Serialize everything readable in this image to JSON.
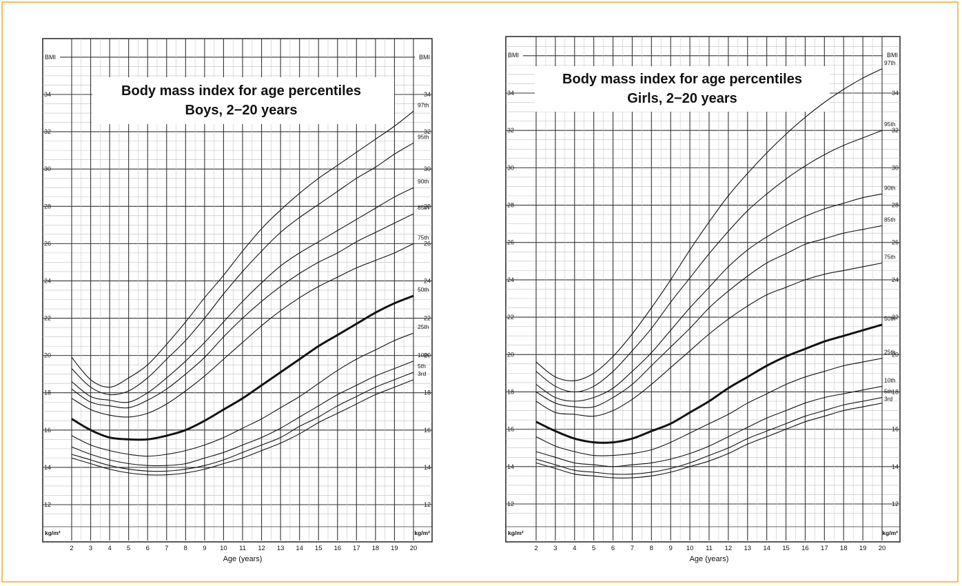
{
  "chart_data": [
    {
      "type": "line",
      "title_line1": "Body mass index for age percentiles",
      "title_line2": "Boys, 2−20 years",
      "xlabel": "Age (years)",
      "ylabel": "BMI",
      "yunit": "kg/m²",
      "xlim": [
        2,
        21
      ],
      "ylim": [
        11,
        36
      ],
      "x_ticks": [
        2,
        3,
        4,
        5,
        6,
        7,
        8,
        9,
        10,
        11,
        12,
        13,
        14,
        15,
        16,
        17,
        18,
        19,
        20
      ],
      "y_ticks": [
        12,
        14,
        16,
        18,
        20,
        22,
        24,
        26,
        28,
        30,
        32,
        34
      ],
      "x": [
        2,
        3,
        4,
        5,
        6,
        7,
        8,
        9,
        10,
        11,
        12,
        13,
        14,
        15,
        16,
        17,
        18,
        19,
        20
      ],
      "series": [
        {
          "name": "97th",
          "values": [
            19.9,
            18.7,
            18.3,
            18.8,
            19.5,
            20.6,
            21.8,
            23.1,
            24.3,
            25.6,
            26.8,
            27.8,
            28.7,
            29.5,
            30.2,
            30.9,
            31.6,
            32.3,
            33.1
          ]
        },
        {
          "name": "95th",
          "values": [
            19.3,
            18.3,
            17.9,
            18.1,
            18.8,
            19.8,
            20.8,
            22.0,
            23.3,
            24.5,
            25.6,
            26.6,
            27.4,
            28.1,
            28.8,
            29.5,
            30.1,
            30.8,
            31.4
          ]
        },
        {
          "name": "90th",
          "values": [
            18.6,
            17.8,
            17.6,
            17.5,
            18.0,
            18.8,
            19.7,
            20.7,
            21.8,
            22.9,
            23.9,
            24.8,
            25.5,
            26.1,
            26.7,
            27.3,
            27.9,
            28.5,
            29.0
          ]
        },
        {
          "name": "85th",
          "values": [
            18.2,
            17.5,
            17.3,
            17.2,
            17.6,
            18.2,
            19.0,
            19.9,
            21.0,
            22.0,
            22.9,
            23.7,
            24.4,
            25.0,
            25.5,
            26.1,
            26.6,
            27.1,
            27.6
          ]
        },
        {
          "name": "75th",
          "values": [
            17.7,
            17.1,
            16.8,
            16.7,
            16.9,
            17.4,
            18.1,
            18.9,
            19.8,
            20.7,
            21.6,
            22.4,
            23.1,
            23.7,
            24.2,
            24.7,
            25.1,
            25.5,
            26.0
          ]
        },
        {
          "name": "50th",
          "values": [
            16.6,
            16.0,
            15.6,
            15.5,
            15.5,
            15.7,
            16.0,
            16.5,
            17.1,
            17.7,
            18.4,
            19.1,
            19.8,
            20.5,
            21.1,
            21.7,
            22.3,
            22.8,
            23.2
          ]
        },
        {
          "name": "25th",
          "values": [
            15.7,
            15.2,
            14.9,
            14.7,
            14.6,
            14.7,
            14.9,
            15.2,
            15.6,
            16.1,
            16.6,
            17.2,
            17.8,
            18.5,
            19.2,
            19.8,
            20.3,
            20.8,
            21.2
          ]
        },
        {
          "name": "10th",
          "values": [
            15.1,
            14.7,
            14.4,
            14.2,
            14.1,
            14.1,
            14.2,
            14.5,
            14.8,
            15.2,
            15.6,
            16.1,
            16.7,
            17.3,
            17.9,
            18.4,
            18.9,
            19.3,
            19.7
          ]
        },
        {
          "name": "5th",
          "values": [
            14.7,
            14.4,
            14.1,
            13.9,
            13.8,
            13.8,
            13.9,
            14.1,
            14.4,
            14.8,
            15.2,
            15.6,
            16.2,
            16.7,
            17.3,
            17.8,
            18.3,
            18.7,
            19.1
          ]
        },
        {
          "name": "3rd",
          "values": [
            14.5,
            14.2,
            13.9,
            13.7,
            13.6,
            13.6,
            13.7,
            13.9,
            14.2,
            14.5,
            14.9,
            15.3,
            15.8,
            16.4,
            16.9,
            17.4,
            17.9,
            18.3,
            18.7
          ]
        }
      ]
    },
    {
      "type": "line",
      "title_line1": "Body mass index for age percentiles",
      "title_line2": "Girls, 2−20 years",
      "xlabel": "Age (years)",
      "ylabel": "BMI",
      "yunit": "kg/m²",
      "xlim": [
        1,
        21
      ],
      "ylim": [
        10.5,
        36.5
      ],
      "x_ticks": [
        2,
        3,
        4,
        5,
        6,
        7,
        8,
        9,
        10,
        11,
        12,
        13,
        14,
        15,
        16,
        17,
        18,
        19,
        20
      ],
      "y_ticks": [
        12,
        14,
        16,
        18,
        20,
        22,
        24,
        26,
        28,
        30,
        32,
        34
      ],
      "x": [
        2,
        3,
        4,
        5,
        6,
        7,
        8,
        9,
        10,
        11,
        12,
        13,
        14,
        15,
        16,
        17,
        18,
        19,
        20
      ],
      "series": [
        {
          "name": "97th",
          "values": [
            19.6,
            18.8,
            18.6,
            19.0,
            19.9,
            21.1,
            22.5,
            24.0,
            25.6,
            27.1,
            28.5,
            29.7,
            30.8,
            31.8,
            32.7,
            33.5,
            34.2,
            34.8,
            35.3
          ]
        },
        {
          "name": "95th",
          "values": [
            19.1,
            18.3,
            18.0,
            18.3,
            19.1,
            20.2,
            21.4,
            22.8,
            24.1,
            25.4,
            26.6,
            27.7,
            28.6,
            29.4,
            30.1,
            30.7,
            31.2,
            31.6,
            32.0
          ]
        },
        {
          "name": "90th",
          "values": [
            18.4,
            17.7,
            17.5,
            17.7,
            18.2,
            19.1,
            20.1,
            21.3,
            22.5,
            23.6,
            24.7,
            25.6,
            26.3,
            26.9,
            27.4,
            27.8,
            28.1,
            28.4,
            28.6
          ]
        },
        {
          "name": "85th",
          "values": [
            18.0,
            17.4,
            17.2,
            17.2,
            17.7,
            18.4,
            19.4,
            20.4,
            21.4,
            22.5,
            23.4,
            24.2,
            24.9,
            25.4,
            25.9,
            26.2,
            26.5,
            26.7,
            26.9
          ]
        },
        {
          "name": "75th",
          "values": [
            17.5,
            16.9,
            16.8,
            16.7,
            17.0,
            17.6,
            18.4,
            19.3,
            20.2,
            21.1,
            21.9,
            22.6,
            23.2,
            23.6,
            24.0,
            24.3,
            24.5,
            24.7,
            24.9
          ]
        },
        {
          "name": "50th",
          "values": [
            16.4,
            15.9,
            15.5,
            15.3,
            15.3,
            15.5,
            15.9,
            16.3,
            16.9,
            17.5,
            18.2,
            18.8,
            19.4,
            19.9,
            20.3,
            20.7,
            21.0,
            21.3,
            21.6
          ]
        },
        {
          "name": "25th",
          "values": [
            15.6,
            15.1,
            14.8,
            14.6,
            14.6,
            14.7,
            14.9,
            15.3,
            15.8,
            16.3,
            16.8,
            17.4,
            17.9,
            18.4,
            18.8,
            19.1,
            19.4,
            19.6,
            19.8
          ]
        },
        {
          "name": "10th",
          "values": [
            14.8,
            14.5,
            14.2,
            14.1,
            14.0,
            14.1,
            14.2,
            14.4,
            14.7,
            15.1,
            15.6,
            16.1,
            16.6,
            17.0,
            17.4,
            17.7,
            17.9,
            18.1,
            18.3
          ]
        },
        {
          "name": "5th",
          "values": [
            14.4,
            14.1,
            13.8,
            13.7,
            13.6,
            13.6,
            13.7,
            13.9,
            14.2,
            14.6,
            15.0,
            15.5,
            15.9,
            16.3,
            16.7,
            17.0,
            17.3,
            17.5,
            17.7
          ]
        },
        {
          "name": "3rd",
          "values": [
            14.2,
            13.9,
            13.6,
            13.5,
            13.4,
            13.4,
            13.5,
            13.7,
            14.0,
            14.3,
            14.7,
            15.2,
            15.6,
            16.0,
            16.4,
            16.7,
            17.0,
            17.2,
            17.4
          ]
        }
      ]
    }
  ]
}
